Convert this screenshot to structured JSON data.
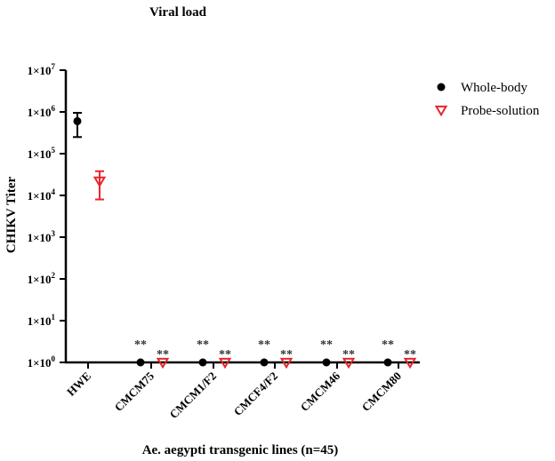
{
  "chart_data": {
    "type": "scatter",
    "title": "Viral load",
    "xlabel": "Ae. aegypti transgenic lines (n=45)",
    "ylabel": "CHIKV Titer",
    "yscale": "log",
    "ylim": [
      1,
      10000000
    ],
    "yticks": [
      {
        "base": "1×10",
        "exp": "0",
        "value": 1
      },
      {
        "base": "1×10",
        "exp": "1",
        "value": 10
      },
      {
        "base": "1×10",
        "exp": "2",
        "value": 100
      },
      {
        "base": "1×10",
        "exp": "3",
        "value": 1000
      },
      {
        "base": "1×10",
        "exp": "4",
        "value": 10000
      },
      {
        "base": "1×10",
        "exp": "5",
        "value": 100000
      },
      {
        "base": "1×10",
        "exp": "6",
        "value": 1000000
      },
      {
        "base": "1×10",
        "exp": "7",
        "value": 10000000
      }
    ],
    "categories": [
      "HWE",
      "CMCM75",
      "CMCM1/F2",
      "CMCF4/F2",
      "CMCM46",
      "CMCM80"
    ],
    "significance": "**",
    "legend_position": "top-right",
    "series": [
      {
        "name": "Whole-body",
        "marker": "filled-circle",
        "color": "#000000",
        "values": [
          600000,
          1,
          1,
          1,
          1,
          1
        ],
        "err_low": [
          250000,
          null,
          null,
          null,
          null,
          null
        ],
        "err_high": [
          950000,
          null,
          null,
          null,
          null,
          null
        ],
        "sig_marks": [
          false,
          true,
          true,
          true,
          true,
          true
        ]
      },
      {
        "name": "Probe-solution",
        "marker": "open-triangle-down",
        "color": "#e8262b",
        "values": [
          22000,
          1,
          1,
          1,
          1,
          1
        ],
        "err_low": [
          8000,
          null,
          null,
          null,
          null,
          null
        ],
        "err_high": [
          38000,
          null,
          null,
          null,
          null,
          null
        ],
        "sig_marks": [
          false,
          true,
          true,
          true,
          true,
          true
        ]
      }
    ]
  }
}
